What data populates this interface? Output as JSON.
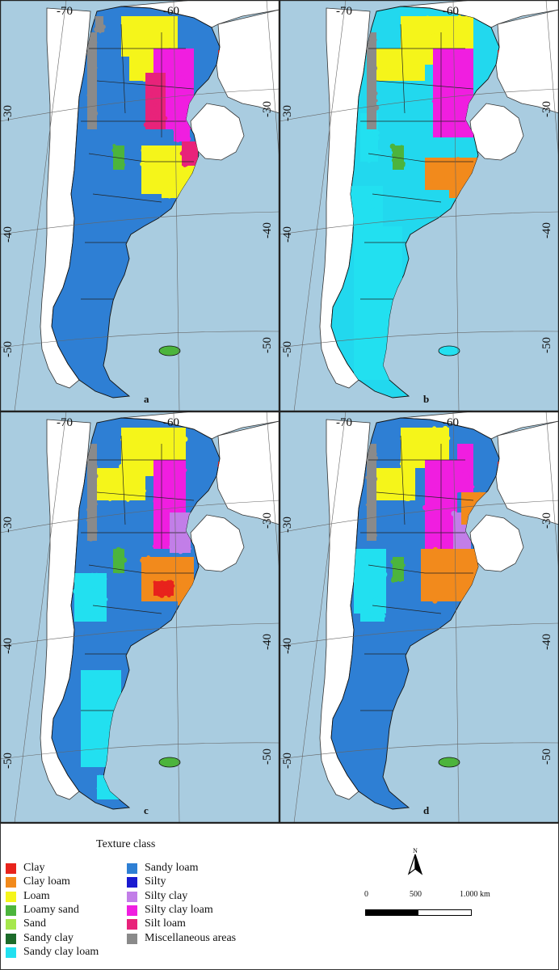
{
  "panels": [
    {
      "label": "a",
      "dominant": "Sandy loam",
      "tint": "#2e7fd4"
    },
    {
      "label": "b",
      "dominant": "Sandy clay loam",
      "tint": "#22d8ee"
    },
    {
      "label": "c",
      "dominant": "Sandy loam",
      "tint": "#2e7fd4"
    },
    {
      "label": "d",
      "dominant": "Sandy loam",
      "tint": "#2e7fd4"
    }
  ],
  "graticule": {
    "top_longitudes": [
      "-70",
      "-60"
    ],
    "left_latitudes": [
      "-30",
      "-40",
      "-50"
    ],
    "right_latitudes": [
      "-30",
      "-40",
      "-50"
    ]
  },
  "colors": {
    "ocean": "#a9cce0",
    "land_neighbor": "#ffffff",
    "misc": "#8a8a8a"
  },
  "legend": {
    "title": "Texture class",
    "items": [
      {
        "label": "Clay",
        "color": "#e8231c"
      },
      {
        "label": "Clay loam",
        "color": "#f28a1c"
      },
      {
        "label": "Loam",
        "color": "#f5f51a"
      },
      {
        "label": "Loamy sand",
        "color": "#4cb43c"
      },
      {
        "label": "Sand",
        "color": "#a6e84c"
      },
      {
        "label": "Sandy clay",
        "color": "#1c6b2a"
      },
      {
        "label": "Sandy clay loam",
        "color": "#22e0f0"
      },
      {
        "label": "Sandy loam",
        "color": "#2e7fd4"
      },
      {
        "label": "Silty",
        "color": "#1a1ad0"
      },
      {
        "label": "Silty clay",
        "color": "#c27ee8"
      },
      {
        "label": "Silty clay loam",
        "color": "#f01ee0"
      },
      {
        "label": "Silt loam",
        "color": "#e8237a"
      },
      {
        "label": "Miscellaneous areas",
        "color": "#8a8a8a"
      }
    ]
  },
  "north": {
    "label": "N"
  },
  "scalebar": {
    "ticks": [
      "0",
      "500",
      "1.000 km"
    ]
  }
}
